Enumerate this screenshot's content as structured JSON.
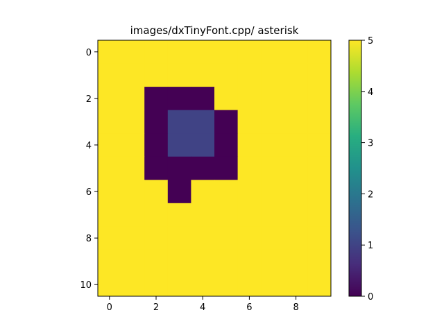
{
  "chart_data": {
    "type": "heatmap",
    "title": "images/dxTinyFont.cpp/ asterisk",
    "xlabel": "",
    "ylabel": "",
    "x_ticks": [
      0,
      2,
      4,
      6,
      8
    ],
    "y_ticks": [
      0,
      2,
      4,
      6,
      8,
      10
    ],
    "xlim": [
      -0.5,
      9.5
    ],
    "ylim": [
      10.5,
      -0.5
    ],
    "colormap": "viridis",
    "color_range": [
      0,
      5
    ],
    "colorbar_ticks": [
      0,
      1,
      2,
      3,
      4,
      5
    ],
    "grid": [
      [
        5,
        5,
        5,
        5,
        5,
        5,
        5,
        5,
        5,
        5
      ],
      [
        5,
        5,
        5,
        5,
        5,
        5,
        5,
        5,
        5,
        5
      ],
      [
        5,
        5,
        0,
        0,
        0,
        5,
        5,
        5,
        5,
        5
      ],
      [
        5,
        5,
        0,
        1,
        1,
        0,
        5,
        5,
        5,
        5
      ],
      [
        5,
        5,
        0,
        1,
        1,
        0,
        5,
        5,
        5,
        5
      ],
      [
        5,
        5,
        0,
        0,
        0,
        0,
        5,
        5,
        5,
        5
      ],
      [
        5,
        5,
        5,
        0,
        5,
        5,
        5,
        5,
        5,
        5
      ],
      [
        5,
        5,
        5,
        5,
        5,
        5,
        5,
        5,
        5,
        5
      ],
      [
        5,
        5,
        5,
        5,
        5,
        5,
        5,
        5,
        5,
        5
      ],
      [
        5,
        5,
        5,
        5,
        5,
        5,
        5,
        5,
        5,
        5
      ],
      [
        5,
        5,
        5,
        5,
        5,
        5,
        5,
        5,
        5,
        5
      ]
    ]
  }
}
